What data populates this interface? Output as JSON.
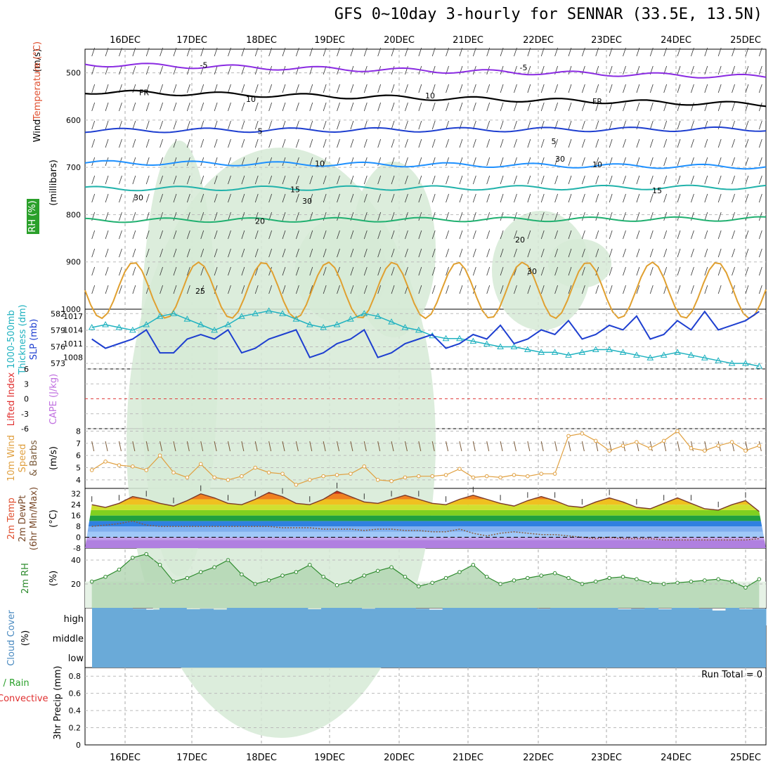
{
  "title": "GFS 0~10day 3-hourly for SENNAR (33.5E, 13.5N)",
  "dates": [
    "16DEC",
    "17DEC",
    "18DEC",
    "19DEC",
    "20DEC",
    "21DEC",
    "22DEC",
    "23DEC",
    "24DEC",
    "25DEC"
  ],
  "colors": {
    "purple": "#8a2be2",
    "black": "#000000",
    "blue": "#1e3fd0",
    "lightblue": "#1e90ff",
    "teal": "#20b2aa",
    "green": "#20b070",
    "orange": "#e0a030",
    "darkorange": "#e07020",
    "magenta": "#e0208a",
    "rhfill": "#d6ead6",
    "slp": "#1e3fd0",
    "thick": "#20b2c0",
    "wind": "#e0a040",
    "rh2m": "#2e8b2e",
    "cloud": "#6aaad8"
  },
  "chart_data": [
    {
      "type": "contour-profile",
      "panel": "upper-air",
      "ylabel_parts": [
        "RH (%)",
        "Temperature (°C)",
        "Wind (m/s)",
        "(millibars)"
      ],
      "y_ticks": [
        "500",
        "600",
        "700",
        "800",
        "900",
        "1000"
      ],
      "ylim": [
        450,
        1000
      ],
      "contours": [
        {
          "label": "-5",
          "level_mb": 482,
          "color": "purple"
        },
        {
          "label": "FR",
          "level_mb": 540,
          "color": "black"
        },
        {
          "label": "5",
          "level_mb": 622,
          "color": "blue"
        },
        {
          "label": "10",
          "level_mb": 690,
          "color": "lightblue"
        },
        {
          "label": "15",
          "level_mb": 745,
          "color": "teal"
        },
        {
          "label": "20",
          "level_mb": 812,
          "color": "green"
        },
        {
          "label": "25",
          "level_mb": 960,
          "color": "orange"
        }
      ],
      "annotations": [
        "10",
        "10",
        "30",
        "30",
        "30",
        "30",
        "25"
      ]
    },
    {
      "type": "line",
      "panel": "slp-thickness",
      "ylabel": "1000-500mb Thickness (dm) / SLP (mb)",
      "left_ticks": [
        "582",
        "579",
        "576",
        "573"
      ],
      "right_ticks": [
        "1017",
        "1014",
        "1011",
        "1008"
      ],
      "series": [
        {
          "name": "Thickness",
          "unit": "dm",
          "values": [
            579.5,
            580,
            579.5,
            579,
            580,
            581.5,
            582,
            581,
            580,
            579,
            580,
            581.5,
            582,
            582.5,
            582,
            581,
            580,
            579.5,
            580,
            581,
            582,
            581.5,
            580.5,
            579.5,
            579,
            578,
            577.5,
            577.5,
            577,
            576.5,
            576,
            576,
            575.5,
            575,
            575,
            574.5,
            575,
            575.5,
            575.5,
            575,
            574.5,
            574,
            574.5,
            575,
            574.5,
            574,
            573.5,
            573,
            573,
            572.5
          ]
        },
        {
          "name": "SLP",
          "unit": "mb",
          "values": [
            1012,
            1010,
            1011,
            1012,
            1014,
            1009,
            1009,
            1012,
            1013,
            1012,
            1014,
            1009,
            1010,
            1012,
            1013,
            1014,
            1008,
            1009,
            1011,
            1012,
            1014,
            1008,
            1009,
            1011,
            1012,
            1013,
            1010,
            1011,
            1013,
            1012,
            1015,
            1011,
            1012,
            1014,
            1013,
            1016,
            1012,
            1013,
            1015,
            1014,
            1017,
            1012,
            1013,
            1016,
            1014,
            1018,
            1014,
            1015,
            1016,
            1018
          ]
        }
      ]
    },
    {
      "type": "line",
      "panel": "cape-li",
      "ylabel": "CAPE (J/kg) / Lifted Index",
      "y_ticks": [
        "6",
        "3",
        "0",
        "-3",
        "-6"
      ],
      "ylim": [
        -6,
        6
      ],
      "values": []
    },
    {
      "type": "line",
      "panel": "wind10m",
      "ylabel": "10m Wind Speed & Barbs (m/s)",
      "y_ticks": [
        "8",
        "7",
        "6",
        "5",
        "4"
      ],
      "ylim": [
        3.3,
        8.2
      ],
      "values": [
        4.8,
        5.5,
        5.2,
        5.1,
        4.8,
        6.0,
        4.6,
        4.2,
        5.3,
        4.2,
        4.0,
        4.3,
        5.0,
        4.6,
        4.5,
        3.6,
        4.0,
        4.3,
        4.4,
        4.5,
        5.1,
        4.0,
        3.9,
        4.2,
        4.3,
        4.3,
        4.4,
        4.9,
        4.2,
        4.3,
        4.2,
        4.4,
        4.3,
        4.5,
        4.5,
        7.6,
        7.8,
        7.2,
        6.4,
        6.8,
        7.1,
        6.6,
        7.2,
        8.0,
        6.6,
        6.4,
        6.8,
        7.1,
        6.4,
        6.8
      ]
    },
    {
      "type": "area",
      "panel": "temp2m",
      "ylabel": "2m Temp / 2m DewPt (6hr Min/Max) (°C)",
      "y_ticks": [
        "32",
        "24",
        "16",
        "8",
        "0",
        "-8"
      ],
      "ylim": [
        -8,
        36
      ],
      "series": [
        {
          "name": "Temp",
          "values": [
            24,
            22,
            25,
            30,
            28,
            25,
            23,
            27,
            32,
            29,
            25,
            24,
            28,
            33,
            30,
            25,
            24,
            28,
            34,
            30,
            26,
            25,
            28,
            31,
            28,
            25,
            24,
            28,
            31,
            28,
            25,
            23,
            27,
            30,
            27,
            23,
            22,
            26,
            29,
            26,
            22,
            21,
            25,
            29,
            25,
            21,
            20,
            24,
            27,
            19
          ]
        },
        {
          "name": "DewPt",
          "values": [
            8,
            9,
            10,
            12,
            9,
            8,
            8,
            8,
            8,
            8,
            8,
            8,
            8,
            8,
            7,
            7,
            7,
            6,
            6,
            6,
            5,
            6,
            6,
            5,
            5,
            4,
            4,
            6,
            3,
            1,
            3,
            4,
            3,
            2,
            2,
            1,
            0,
            -1,
            0,
            -1,
            -1,
            -1,
            -2,
            -2,
            -2,
            -2,
            -2,
            -2,
            -2,
            -1
          ]
        }
      ]
    },
    {
      "type": "area",
      "panel": "rh2m",
      "ylabel": "2m RH (%)",
      "y_ticks": [
        "40",
        "20"
      ],
      "ylim": [
        0,
        50
      ],
      "values": [
        22,
        26,
        32,
        42,
        45,
        36,
        22,
        25,
        30,
        34,
        40,
        28,
        20,
        23,
        27,
        30,
        36,
        26,
        19,
        22,
        27,
        31,
        34,
        26,
        18,
        21,
        25,
        30,
        36,
        26,
        20,
        23,
        25,
        27,
        29,
        25,
        20,
        22,
        25,
        26,
        24,
        21,
        20,
        21,
        22,
        23,
        24,
        22,
        17,
        24
      ]
    },
    {
      "type": "bar",
      "panel": "cloud",
      "ylabel": "Cloud Cover (%)",
      "levels": [
        "high",
        "middle",
        "low"
      ],
      "values": [
        100,
        100,
        100,
        95,
        90,
        100,
        100,
        92,
        95,
        90,
        100,
        100,
        100,
        100,
        100,
        100,
        92,
        100,
        100,
        100,
        95,
        100,
        100,
        100,
        95,
        90,
        100,
        100,
        100,
        100,
        100,
        100,
        100,
        95,
        100,
        100,
        100,
        100,
        100,
        92,
        95,
        100,
        92,
        100,
        100,
        95,
        85,
        100,
        92,
        95
      ]
    },
    {
      "type": "bar",
      "panel": "precip",
      "ylabel": "3hr Precip (mm)",
      "side_labels": [
        "Total / Rain",
        "Convective"
      ],
      "y_ticks": [
        "0.8",
        "0.6",
        "0.4",
        "0.2",
        "0"
      ],
      "ylim": [
        0,
        0.9
      ],
      "run_total_label": "Run Total = 0",
      "values": []
    }
  ]
}
